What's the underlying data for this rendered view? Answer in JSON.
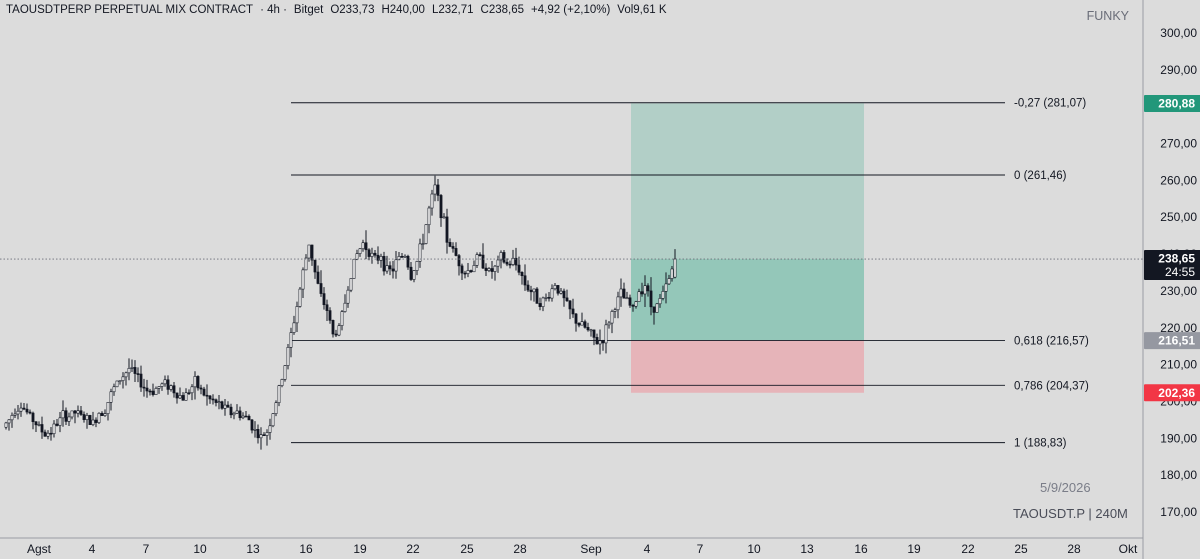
{
  "header": {
    "symbol": "TAOUSDTPERP PERPETUAL MIX CONTRACT",
    "interval": "· 4h ·",
    "exchange": "Bitget",
    "open": "O233,73",
    "high": "H240,00",
    "low": "L232,71",
    "close": "C238,65",
    "change": "+4,92 (+2,10%)",
    "volume": "Vol9,61 K"
  },
  "watermark": {
    "author": "FUNKY",
    "date": "5/9/2026",
    "symbol_tf": "TAOUSDT.P | 240M"
  },
  "colors": {
    "background": "#dcdcdc",
    "up_candle": "#ffffff",
    "down_candle": "#131722",
    "fib_line": "#131722",
    "profit_zone": "#8fc5b6",
    "loss_zone": "#e8adb3",
    "tp_badge": "#22977a",
    "sl_badge": "#f23645",
    "entry_badge": "#9598a1",
    "price_badge": "#131722"
  },
  "chart_data": {
    "type": "candlestick",
    "ylim": [
      165,
      305
    ],
    "y_ticks": [
      "300,00",
      "290,00",
      "280,00",
      "270,00",
      "260,00",
      "250,00",
      "240,00",
      "230,00",
      "220,00",
      "210,00",
      "200,00",
      "190,00",
      "180,00",
      "170,00"
    ],
    "y_tick_values": [
      300,
      290,
      280,
      270,
      260,
      250,
      240,
      230,
      220,
      210,
      200,
      190,
      180,
      170
    ],
    "x_ticks": [
      "Agst",
      "4",
      "7",
      "10",
      "13",
      "16",
      "19",
      "22",
      "25",
      "28",
      "Sep",
      "4",
      "7",
      "10",
      "13",
      "16",
      "19",
      "22",
      "25",
      "28",
      "Okt"
    ],
    "fib_levels": [
      {
        "label": "-0,27 (281,07)",
        "value": 281.07
      },
      {
        "label": "0 (261,46)",
        "value": 261.46
      },
      {
        "label": "0,618 (216,57)",
        "value": 216.57
      },
      {
        "label": "0,786 (204,37)",
        "value": 204.37
      },
      {
        "label": "1 (188,83)",
        "value": 188.83
      }
    ],
    "position": {
      "take_profit": 280.88,
      "entry": 216.51,
      "stop_loss": 202.36,
      "tp_label": "280,88",
      "entry_label": "216,51",
      "sl_label": "202,36"
    },
    "last_price": {
      "value": 238.65,
      "label": "238,65",
      "countdown": "24:55"
    },
    "price_path": [
      [
        0,
        193
      ],
      [
        2,
        195
      ],
      [
        4,
        198
      ],
      [
        6,
        199
      ],
      [
        8,
        197
      ],
      [
        10,
        195
      ],
      [
        12,
        193
      ],
      [
        14,
        191
      ],
      [
        16,
        192
      ],
      [
        18,
        194
      ],
      [
        20,
        196
      ],
      [
        22,
        196
      ],
      [
        24,
        197
      ],
      [
        26,
        196
      ],
      [
        28,
        195
      ],
      [
        30,
        194
      ],
      [
        32,
        197
      ],
      [
        34,
        198
      ],
      [
        36,
        202
      ],
      [
        38,
        205
      ],
      [
        40,
        207
      ],
      [
        42,
        209
      ],
      [
        44,
        207
      ],
      [
        46,
        205
      ],
      [
        48,
        203
      ],
      [
        50,
        203
      ],
      [
        52,
        204
      ],
      [
        54,
        205
      ],
      [
        56,
        204
      ],
      [
        58,
        202
      ],
      [
        60,
        201
      ],
      [
        62,
        203
      ],
      [
        64,
        205
      ],
      [
        66,
        203
      ],
      [
        68,
        201
      ],
      [
        70,
        200
      ],
      [
        72,
        199
      ],
      [
        74,
        198
      ],
      [
        76,
        197
      ],
      [
        78,
        197
      ],
      [
        80,
        196
      ],
      [
        82,
        195
      ],
      [
        84,
        192
      ],
      [
        86,
        190
      ],
      [
        88,
        192
      ],
      [
        90,
        197
      ],
      [
        92,
        203
      ],
      [
        94,
        210
      ],
      [
        96,
        218
      ],
      [
        98,
        226
      ],
      [
        100,
        235
      ],
      [
        102,
        243
      ],
      [
        104,
        235
      ],
      [
        106,
        228
      ],
      [
        108,
        225
      ],
      [
        110,
        218
      ],
      [
        112,
        220
      ],
      [
        114,
        227
      ],
      [
        116,
        235
      ],
      [
        118,
        240
      ],
      [
        120,
        243
      ],
      [
        122,
        241
      ],
      [
        124,
        238
      ],
      [
        126,
        240
      ],
      [
        128,
        235
      ],
      [
        130,
        236
      ],
      [
        132,
        239
      ],
      [
        134,
        240
      ],
      [
        136,
        234
      ],
      [
        138,
        238
      ],
      [
        140,
        244
      ],
      [
        142,
        252
      ],
      [
        144,
        258
      ],
      [
        146,
        252
      ],
      [
        148,
        244
      ],
      [
        150,
        241
      ],
      [
        152,
        238
      ],
      [
        154,
        235
      ],
      [
        156,
        236
      ],
      [
        158,
        239
      ],
      [
        160,
        238
      ],
      [
        162,
        235
      ],
      [
        164,
        236
      ],
      [
        166,
        239
      ],
      [
        168,
        237
      ],
      [
        170,
        238
      ],
      [
        172,
        236
      ],
      [
        174,
        232
      ],
      [
        176,
        230
      ],
      [
        178,
        228
      ],
      [
        180,
        227
      ],
      [
        182,
        229
      ],
      [
        184,
        232
      ],
      [
        186,
        229
      ],
      [
        188,
        226
      ],
      [
        190,
        223
      ],
      [
        192,
        221
      ],
      [
        194,
        220
      ],
      [
        196,
        218
      ],
      [
        198,
        216
      ],
      [
        200,
        217
      ],
      [
        202,
        222
      ],
      [
        204,
        226
      ],
      [
        206,
        229
      ],
      [
        208,
        227
      ],
      [
        210,
        225
      ],
      [
        212,
        230
      ],
      [
        214,
        232
      ],
      [
        216,
        226
      ],
      [
        218,
        226
      ],
      [
        220,
        229
      ],
      [
        222,
        233
      ],
      [
        224,
        238.65
      ]
    ]
  }
}
